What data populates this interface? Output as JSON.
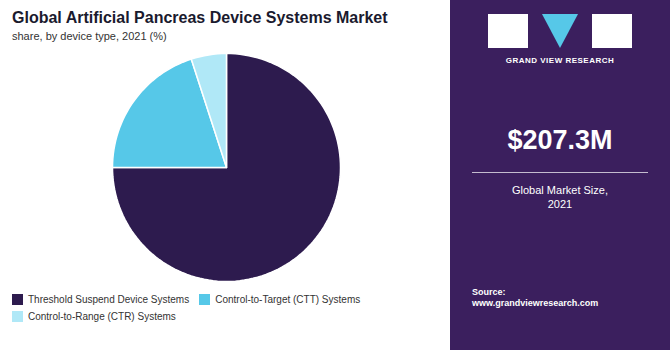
{
  "chart_data": {
    "type": "pie",
    "title": "Global Artificial Pancreas Device Systems Market",
    "subtitle": "share, by device type, 2021 (%)",
    "categories": [
      "Threshold Suspend Device Systems",
      "Control-to-Target (CTT) Systems",
      "Control-to-Range (CTR) Systems"
    ],
    "values": [
      75,
      20,
      5
    ],
    "colors": [
      "#2d1b4e",
      "#56c8e8",
      "#b0e8f7"
    ],
    "legend": "bottom",
    "annotations": [
      "GRAND VIEW RESEARCH",
      "$207.3M",
      "Global Market Size,\n2021",
      "Source:\nwww.grandviewresearch.com"
    ]
  }
}
